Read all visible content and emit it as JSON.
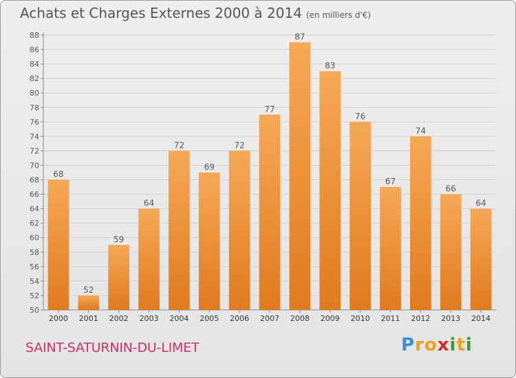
{
  "title": "Achats et Charges Externes 2000 à 2014",
  "subtitle": "(en milliers d'€)",
  "place_name": "SAINT-SATURNIN-DU-LIMET",
  "logo": {
    "text": "Proxiti",
    "letters": [
      {
        "ch": "P",
        "color": "#3a8fd6"
      },
      {
        "ch": "r",
        "color": "#f0a020"
      },
      {
        "ch": "o",
        "color": "#f0a020"
      },
      {
        "ch": "x",
        "color": "#d8262e"
      },
      {
        "ch": "i",
        "color": "#3a9a3a"
      },
      {
        "ch": "t",
        "color": "#f0a020"
      },
      {
        "ch": "i",
        "color": "#3a9a3a"
      }
    ]
  },
  "colors": {
    "bar_light": "#f6a856",
    "bar_dark": "#e07a1e",
    "grid": "#d0d0d0",
    "text": "#555555",
    "place": "#c8336c"
  },
  "chart_data": {
    "type": "bar",
    "title": "Achats et Charges Externes 2000 à 2014",
    "subtitle": "(en milliers d'€)",
    "categories": [
      "2000",
      "2001",
      "2002",
      "2003",
      "2004",
      "2005",
      "2006",
      "2007",
      "2008",
      "2009",
      "2010",
      "2011",
      "2012",
      "2013",
      "2014"
    ],
    "values": [
      68,
      52,
      59,
      64,
      72,
      69,
      72,
      77,
      87,
      83,
      76,
      67,
      74,
      66,
      64
    ],
    "ylim": [
      50,
      88
    ],
    "yticks": [
      50,
      52,
      54,
      56,
      58,
      60,
      62,
      64,
      66,
      68,
      70,
      72,
      74,
      76,
      78,
      80,
      82,
      84,
      86,
      88
    ],
    "grid": true,
    "legend": "none"
  }
}
